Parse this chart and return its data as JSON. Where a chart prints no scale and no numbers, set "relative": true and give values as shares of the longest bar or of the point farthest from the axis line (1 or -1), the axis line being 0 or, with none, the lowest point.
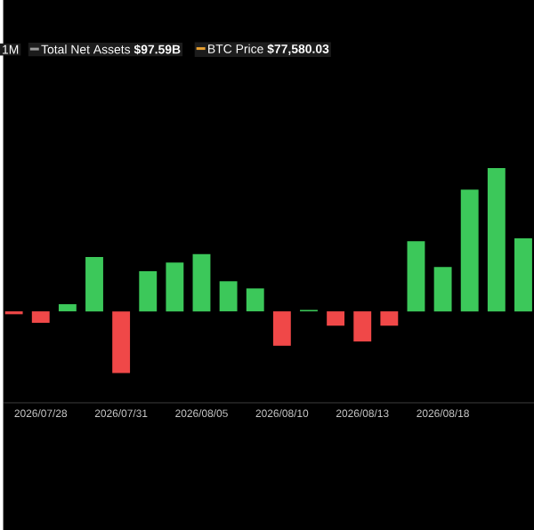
{
  "chart_data": {
    "type": "bar",
    "relative": true,
    "categories": [
      null,
      "2026/07/28",
      null,
      null,
      "2026/07/31",
      null,
      null,
      "2026/08/05",
      null,
      null,
      "2026/08/10",
      null,
      null,
      "2026/08/13",
      null,
      null,
      "2026/08/18",
      null,
      null,
      null
    ],
    "values": [
      -0.02,
      -0.08,
      0.05,
      0.38,
      -0.43,
      0.28,
      0.34,
      0.4,
      0.21,
      0.16,
      -0.24,
      0.01,
      -0.1,
      -0.21,
      -0.1,
      0.49,
      0.31,
      0.85,
      1.0,
      0.51
    ],
    "colors": [
      "#f04848",
      "#f04848",
      "#3cc85a",
      "#3cc85a",
      "#f04848",
      "#3cc85a",
      "#3cc85a",
      "#3cc85a",
      "#3cc85a",
      "#3cc85a",
      "#f04848",
      "#3cc85a",
      "#f04848",
      "#f04848",
      "#f04848",
      "#3cc85a",
      "#3cc85a",
      "#3cc85a",
      "#3cc85a",
      "#3cc85a"
    ],
    "annotations": [
      "1M",
      "Total Net Assets **$97.59B**",
      "BTC Price **$77,580.03**"
    ]
  }
}
